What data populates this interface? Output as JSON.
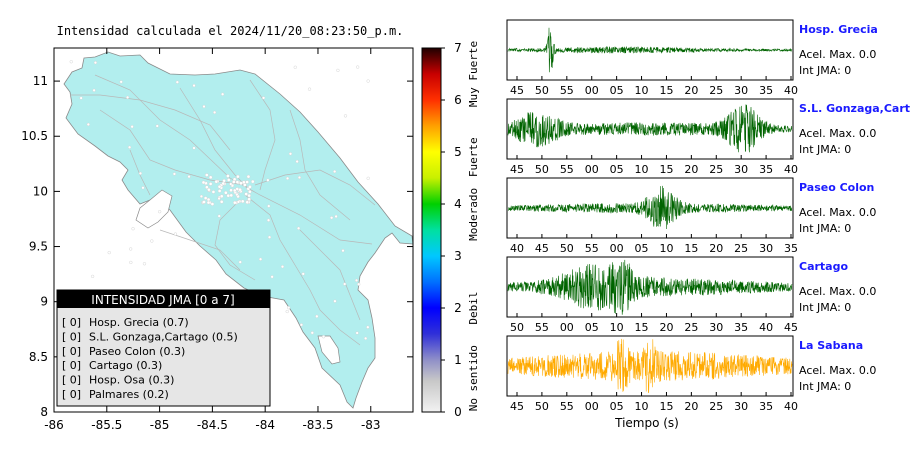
{
  "map": {
    "title": "Intensidad calculada el 2024/11/20_08:23:50_p.m.",
    "x_ticks": [
      "-86",
      "-85.5",
      "-85",
      "-84.5",
      "-84",
      "-83.5",
      "-83"
    ],
    "x_tick_values": [
      -86,
      -85.5,
      -85,
      -84.5,
      -84,
      -83.5,
      -83
    ],
    "y_ticks": [
      "11",
      "10.5",
      "10",
      "9.5",
      "9",
      "8.5",
      "8"
    ],
    "y_tick_values": [
      11,
      10.5,
      10,
      9.5,
      9,
      8.5,
      8
    ],
    "xlim": [
      -86,
      -82.6
    ],
    "ylim": [
      8,
      11.3
    ],
    "land_color": "#b2eeee"
  },
  "legend": {
    "title": "INTENSIDAD JMA [0 a 7]",
    "items": [
      {
        "code": "[ 0]",
        "label": "Hosp. Grecia (0.7)"
      },
      {
        "code": "[ 0]",
        "label": "S.L. Gonzaga,Cartago (0.5)"
      },
      {
        "code": "[ 0]",
        "label": "Paseo Colon (0.3)"
      },
      {
        "code": "[ 0]",
        "label": "Cartago (0.3)"
      },
      {
        "code": "[ 0]",
        "label": "Hosp. Osa (0.3)"
      },
      {
        "code": "[ 0]",
        "label": "Palmares (0.2)"
      }
    ]
  },
  "colorbar": {
    "ticks": [
      "7",
      "6",
      "5",
      "4",
      "3",
      "2",
      "1",
      "0"
    ],
    "tick_values": [
      7,
      6,
      5,
      4,
      3,
      2,
      1,
      0
    ],
    "range": [
      0,
      7
    ],
    "class_labels": [
      {
        "label": "Muy Fuerte",
        "center": 6.5
      },
      {
        "label": "Fuerte",
        "center": 4.9
      },
      {
        "label": "Moderado",
        "center": 3.8
      },
      {
        "label": "Debil",
        "center": 2.0
      },
      {
        "label": "No sentido",
        "center": 0.65
      }
    ],
    "stops": [
      {
        "v": 0,
        "c": "#f2f2f2"
      },
      {
        "v": 0.6,
        "c": "#c8c8c8"
      },
      {
        "v": 1.0,
        "c": "#9090c8"
      },
      {
        "v": 1.5,
        "c": "#3030d8"
      },
      {
        "v": 2.0,
        "c": "#0000ff"
      },
      {
        "v": 2.5,
        "c": "#0070ff"
      },
      {
        "v": 3.0,
        "c": "#00c8ff"
      },
      {
        "v": 3.5,
        "c": "#00e0a0"
      },
      {
        "v": 4.0,
        "c": "#00d000"
      },
      {
        "v": 4.5,
        "c": "#c8f000"
      },
      {
        "v": 5.0,
        "c": "#ffff00"
      },
      {
        "v": 5.5,
        "c": "#ffa000"
      },
      {
        "v": 6.0,
        "c": "#ff3000"
      },
      {
        "v": 6.5,
        "c": "#c80000"
      },
      {
        "v": 7.0,
        "c": "#200000"
      }
    ]
  },
  "chart_data": {
    "type": "line",
    "xlabel": "Tiempo (s)",
    "series": [
      {
        "name": "Hosp. Grecia",
        "accel": "Acel. Max. 0.0",
        "int": "Int JMA: 0",
        "color": "#006400",
        "ticks": [
          "45",
          "50",
          "55",
          "00",
          "05",
          "10",
          "15",
          "20",
          "25",
          "30",
          "35",
          "40"
        ]
      },
      {
        "name": "S.L. Gonzaga,Cartago",
        "accel": "Acel. Max. 0.0",
        "int": "Int JMA: 0",
        "color": "#006400",
        "ticks": [
          "45",
          "50",
          "55",
          "00",
          "05",
          "10",
          "15",
          "20",
          "25",
          "30",
          "35",
          "40"
        ]
      },
      {
        "name": "Paseo Colon",
        "accel": "Acel. Max. 0.0",
        "int": "Int JMA: 0",
        "color": "#006400",
        "ticks": [
          "40",
          "45",
          "50",
          "55",
          "00",
          "05",
          "10",
          "15",
          "20",
          "25",
          "30",
          "35"
        ]
      },
      {
        "name": "Cartago",
        "accel": "Acel. Max. 0.0",
        "int": "Int JMA: 0",
        "color": "#006400",
        "ticks": [
          "50",
          "55",
          "00",
          "05",
          "10",
          "15",
          "20",
          "25",
          "30",
          "35",
          "40",
          "45"
        ]
      },
      {
        "name": "La Sabana",
        "accel": "Acel. Max. 0.0",
        "int": "Int JMA: 0",
        "color": "#ffaa00",
        "ticks": [
          "45",
          "50",
          "55",
          "00",
          "05",
          "10",
          "15",
          "20",
          "25",
          "30",
          "35",
          "40"
        ]
      }
    ]
  }
}
